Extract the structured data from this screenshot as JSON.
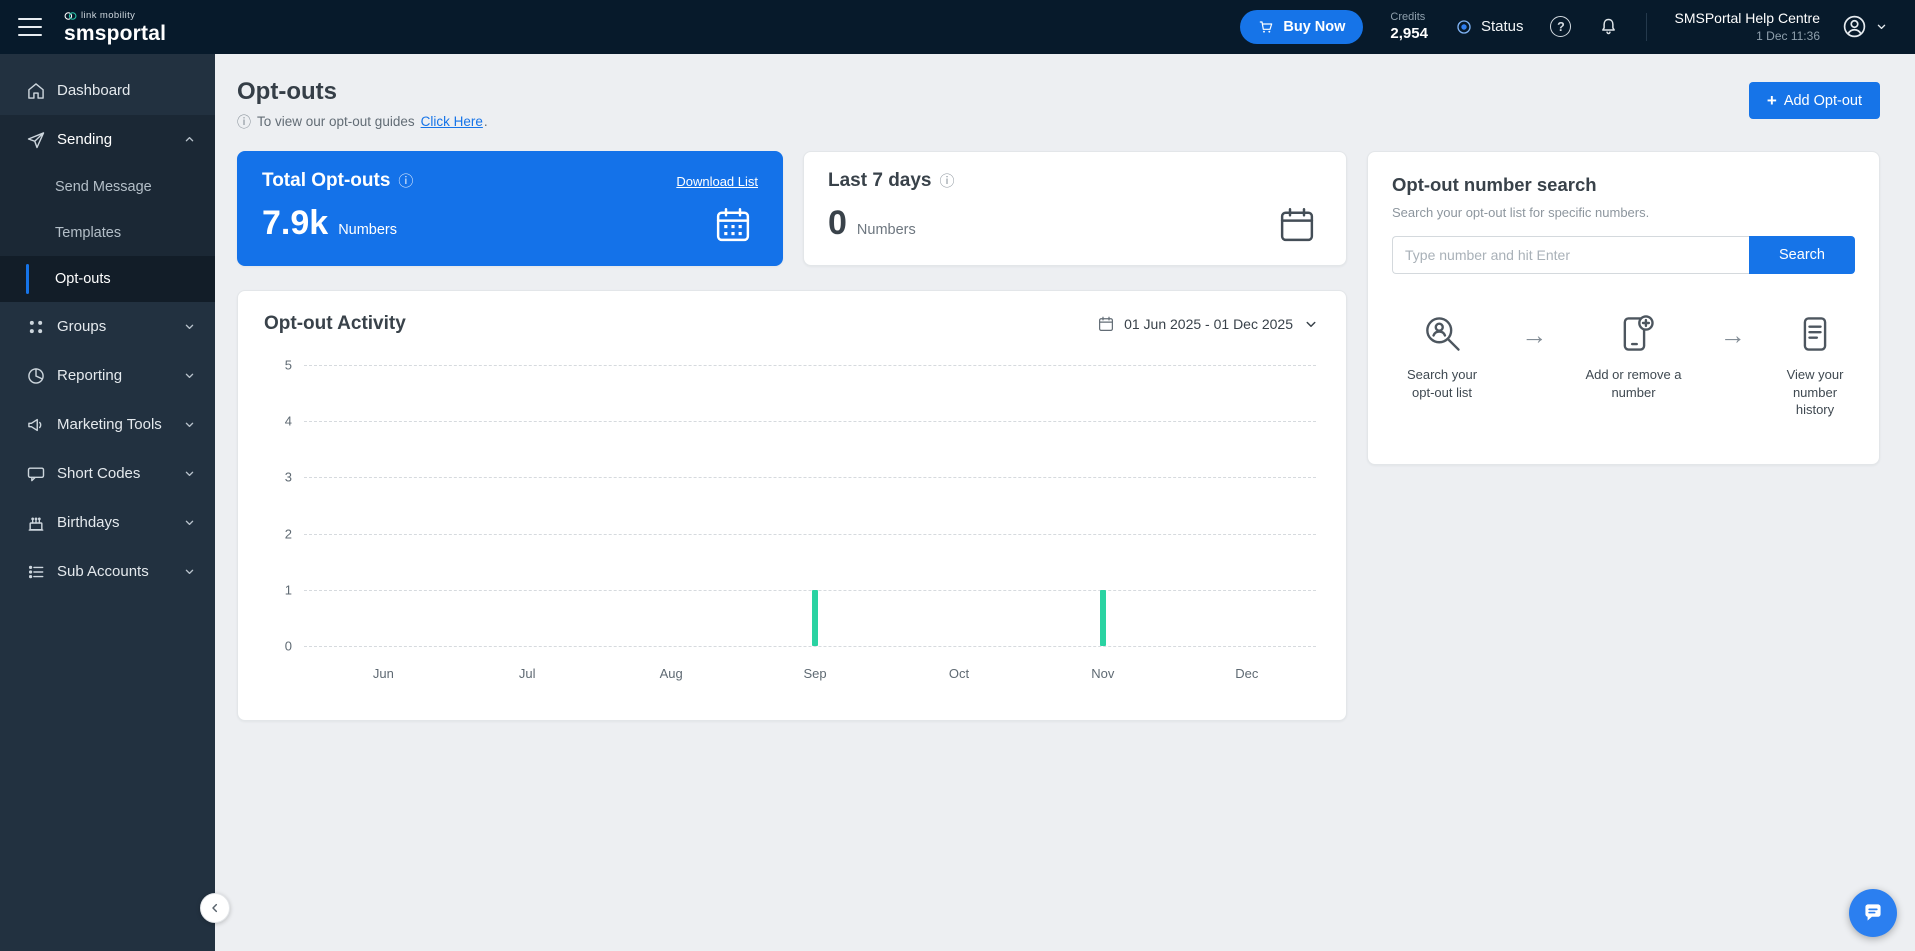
{
  "topbar": {
    "logo_small": "link mobility",
    "logo_main": "smsportal",
    "buy_now_label": "Buy Now",
    "credits_label": "Credits",
    "credits_value": "2,954",
    "status_label": "Status",
    "account_name": "SMSPortal Help Centre",
    "account_datetime": "1 Dec 11:36"
  },
  "sidebar": {
    "items": [
      {
        "label": "Dashboard"
      },
      {
        "label": "Sending"
      },
      {
        "label": "Groups"
      },
      {
        "label": "Reporting"
      },
      {
        "label": "Marketing Tools"
      },
      {
        "label": "Short Codes"
      },
      {
        "label": "Birthdays"
      },
      {
        "label": "Sub Accounts"
      }
    ],
    "sending_children": [
      {
        "label": "Send Message"
      },
      {
        "label": "Templates"
      },
      {
        "label": "Opt-outs"
      }
    ]
  },
  "page": {
    "title": "Opt-outs",
    "guide_text": "To view our opt-out guides",
    "guide_link": "Click Here",
    "guide_suffix": ".",
    "add_button_label": "Add Opt-out"
  },
  "cards": {
    "total": {
      "title": "Total Opt-outs",
      "download_link": "Download List",
      "value": "7.9k",
      "unit": "Numbers"
    },
    "last7": {
      "title": "Last 7 days",
      "value": "0",
      "unit": "Numbers"
    },
    "search": {
      "title": "Opt-out number search",
      "subtitle": "Search your opt-out list for specific numbers.",
      "input_placeholder": "Type number and hit Enter",
      "button_label": "Search",
      "steps": [
        {
          "label": "Search your opt-out list"
        },
        {
          "label": "Add or remove a number"
        },
        {
          "label": "View your number history"
        }
      ]
    }
  },
  "activity": {
    "title": "Opt-out Activity",
    "date_range": "01 Jun 2025 - 01 Dec 2025"
  },
  "chart_data": {
    "type": "bar",
    "title": "Opt-out Activity",
    "x": [
      "Jun",
      "Jul",
      "Aug",
      "Sep",
      "Oct",
      "Nov",
      "Dec"
    ],
    "yticks": [
      0,
      1,
      2,
      3,
      4,
      5
    ],
    "ylim": [
      0,
      5
    ],
    "bars": [
      {
        "x": "Sep",
        "value": 1
      },
      {
        "x": "Nov",
        "value": 1
      }
    ],
    "bar_color": "#2ad3a2",
    "grid": "dashed-horizontal",
    "legend": "none",
    "xlabel": "",
    "ylabel": ""
  },
  "icons": {
    "info": "ⓘ",
    "plus": "+",
    "arrow": "→",
    "question": "?"
  },
  "colors": {
    "accent_blue": "#1674e8",
    "bar_teal": "#2ad3a2",
    "topbar_bg": "#071a2b",
    "sidebar_bg": "#223140"
  }
}
